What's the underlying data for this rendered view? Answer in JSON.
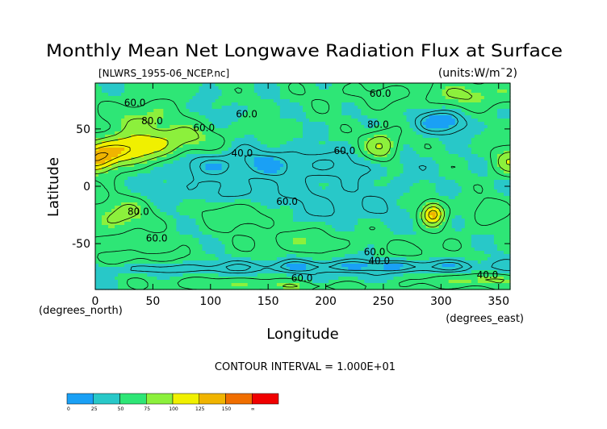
{
  "chart_data": {
    "type": "heatmap",
    "title": "Monthly Mean Net Longwave Radiation Flux at Surface",
    "subtitle_left": "[NLWRS_1955-06_NCEP.nc]",
    "subtitle_right": "(units:W/m^2)",
    "xlabel": "Longitude",
    "ylabel": "Latitude",
    "x_unit_label": "(degrees_east)",
    "y_unit_label": "(degrees_north)",
    "xlim": [
      0,
      360
    ],
    "ylim": [
      -90,
      90
    ],
    "x_ticks": [
      0,
      50,
      100,
      150,
      200,
      250,
      300,
      350
    ],
    "y_ticks": [
      -50,
      0,
      50
    ],
    "contour_interval_label": "CONTOUR INTERVAL = 1.000E+01",
    "contour_labels": [
      {
        "text": "60.0",
        "x": 25,
        "y": 70
      },
      {
        "text": "80.0",
        "x": 40,
        "y": 54
      },
      {
        "text": "60.0",
        "x": 85,
        "y": 48
      },
      {
        "text": "60.0",
        "x": 122,
        "y": 60
      },
      {
        "text": "40.0",
        "x": 118,
        "y": 26
      },
      {
        "text": "60.0",
        "x": 238,
        "y": 78
      },
      {
        "text": "80.0",
        "x": 236,
        "y": 51
      },
      {
        "text": "60.0",
        "x": 207,
        "y": 28
      },
      {
        "text": "60.0",
        "x": 157,
        "y": -16
      },
      {
        "text": "80.0",
        "x": 28,
        "y": -25
      },
      {
        "text": "60.0",
        "x": 44,
        "y": -48
      },
      {
        "text": "60.0",
        "x": 233,
        "y": -60
      },
      {
        "text": "40.0",
        "x": 237,
        "y": -68
      },
      {
        "text": "60.0",
        "x": 170,
        "y": -83
      },
      {
        "text": "40.0",
        "x": 331,
        "y": -80
      }
    ],
    "colorbar": {
      "tick_labels": [
        "0",
        "25",
        "50",
        "75",
        "100",
        "125",
        "150",
        "∞"
      ],
      "colors": [
        "#1aa0f5",
        "#28c8c8",
        "#2ee676",
        "#8cf03c",
        "#f0f000",
        "#f0b400",
        "#f06e00",
        "#f00000"
      ]
    },
    "field": {
      "background_value": 52,
      "features": [
        {
          "lon": 20,
          "lat": 30,
          "sx": 22,
          "sy": 9,
          "amp": 65
        },
        {
          "lon": 62,
          "lat": 40,
          "sx": 28,
          "sy": 10,
          "amp": 45
        },
        {
          "lon": 45,
          "lat": 62,
          "sx": 22,
          "sy": 8,
          "amp": 30
        },
        {
          "lon": 0,
          "lat": 22,
          "sx": 12,
          "sy": 8,
          "amp": 55
        },
        {
          "lon": 360,
          "lat": 22,
          "sx": 10,
          "sy": 8,
          "amp": 45
        },
        {
          "lon": 248,
          "lat": 35,
          "sx": 10,
          "sy": 9,
          "amp": 50
        },
        {
          "lon": 245,
          "lat": 80,
          "sx": 40,
          "sy": 8,
          "amp": 10
        },
        {
          "lon": 330,
          "lat": 80,
          "sx": 25,
          "sy": 8,
          "amp": 30
        },
        {
          "lon": 300,
          "lat": 56,
          "sx": 16,
          "sy": 7,
          "amp": -38
        },
        {
          "lon": 80,
          "lat": 62,
          "sx": 30,
          "sy": 8,
          "amp": -8
        },
        {
          "lon": 110,
          "lat": 20,
          "sx": 45,
          "sy": 10,
          "amp": -20
        },
        {
          "lon": 190,
          "lat": 18,
          "sx": 55,
          "sy": 9,
          "amp": -18
        },
        {
          "lon": 130,
          "lat": -5,
          "sx": 80,
          "sy": 7,
          "amp": -12
        },
        {
          "lon": 210,
          "lat": -20,
          "sx": 50,
          "sy": 8,
          "amp": -12
        },
        {
          "lon": 20,
          "lat": -25,
          "sx": 18,
          "sy": 11,
          "amp": 35
        },
        {
          "lon": 125,
          "lat": -25,
          "sx": 20,
          "sy": 8,
          "amp": 25
        },
        {
          "lon": 293,
          "lat": -24,
          "sx": 7,
          "sy": 7,
          "amp": 80
        },
        {
          "lon": 340,
          "lat": -22,
          "sx": 12,
          "sy": 8,
          "amp": 18
        },
        {
          "lon": 180,
          "lat": -48,
          "sx": 28,
          "sy": 7,
          "amp": 20
        },
        {
          "lon": 280,
          "lat": -55,
          "sx": 16,
          "sy": 6,
          "amp": 15
        },
        {
          "lon": 40,
          "lat": -62,
          "sx": 30,
          "sy": 5,
          "amp": 15
        },
        {
          "lon": 240,
          "lat": -70,
          "sx": 90,
          "sy": 4,
          "amp": -30
        },
        {
          "lon": 60,
          "lat": -72,
          "sx": 60,
          "sy": 3,
          "amp": -15
        },
        {
          "lon": 160,
          "lat": -85,
          "sx": 60,
          "sy": 4,
          "amp": 30
        },
        {
          "lon": 330,
          "lat": -82,
          "sx": 30,
          "sy": 4,
          "amp": 30
        },
        {
          "lon": 200,
          "lat": -82,
          "sx": 40,
          "sy": 3,
          "amp": -20
        }
      ]
    }
  }
}
